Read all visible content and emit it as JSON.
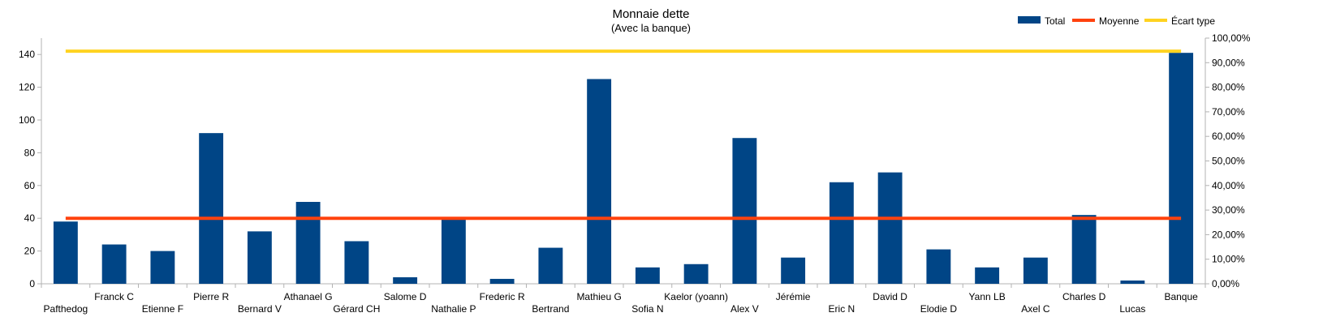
{
  "chart_data": {
    "type": "bar",
    "title": "Monnaie dette",
    "subtitle": "(Avec la banque)",
    "categories": [
      "Pafthedog",
      "Franck C",
      "Etienne F",
      "Pierre R",
      "Bernard V",
      "Athanael G",
      "Gérard CH",
      "Salome D",
      "Nathalie P",
      "Frederic R",
      "Bertrand",
      "Mathieu G",
      "Sofia N",
      "Kaelor (yoann)",
      "Alex V",
      "Jérémie",
      "Eric N",
      "David D",
      "Elodie D",
      "Yann LB",
      "Axel C",
      "Charles D",
      "Lucas",
      "Banque"
    ],
    "series": [
      {
        "name": "Total",
        "type": "bar",
        "axis": "left",
        "color": "#004586",
        "values": [
          38,
          24,
          20,
          92,
          32,
          50,
          26,
          4,
          40,
          3,
          22,
          125,
          10,
          12,
          89,
          16,
          62,
          68,
          21,
          10,
          16,
          42,
          2,
          141
        ]
      },
      {
        "name": "Moyenne",
        "type": "line",
        "axis": "left",
        "color": "#ff420e",
        "values": [
          40,
          40,
          40,
          40,
          40,
          40,
          40,
          40,
          40,
          40,
          40,
          40,
          40,
          40,
          40,
          40,
          40,
          40,
          40,
          40,
          40,
          40,
          40,
          40
        ]
      },
      {
        "name": "Écart type",
        "type": "line",
        "axis": "left",
        "color": "#ffd320",
        "values": [
          142,
          142,
          142,
          142,
          142,
          142,
          142,
          142,
          142,
          142,
          142,
          142,
          142,
          142,
          142,
          142,
          142,
          142,
          142,
          142,
          142,
          142,
          142,
          142
        ]
      }
    ],
    "ylim": [
      0,
      150
    ],
    "yticks": [
      "0",
      "20",
      "40",
      "60",
      "80",
      "100",
      "120",
      "140"
    ],
    "y2lim": [
      0,
      100
    ],
    "y2ticks": [
      "0,00%",
      "10,00%",
      "20,00%",
      "30,00%",
      "40,00%",
      "50,00%",
      "60,00%",
      "70,00%",
      "80,00%",
      "90,00%",
      "100,00%"
    ],
    "legend_position": "top-right",
    "grid": false
  }
}
